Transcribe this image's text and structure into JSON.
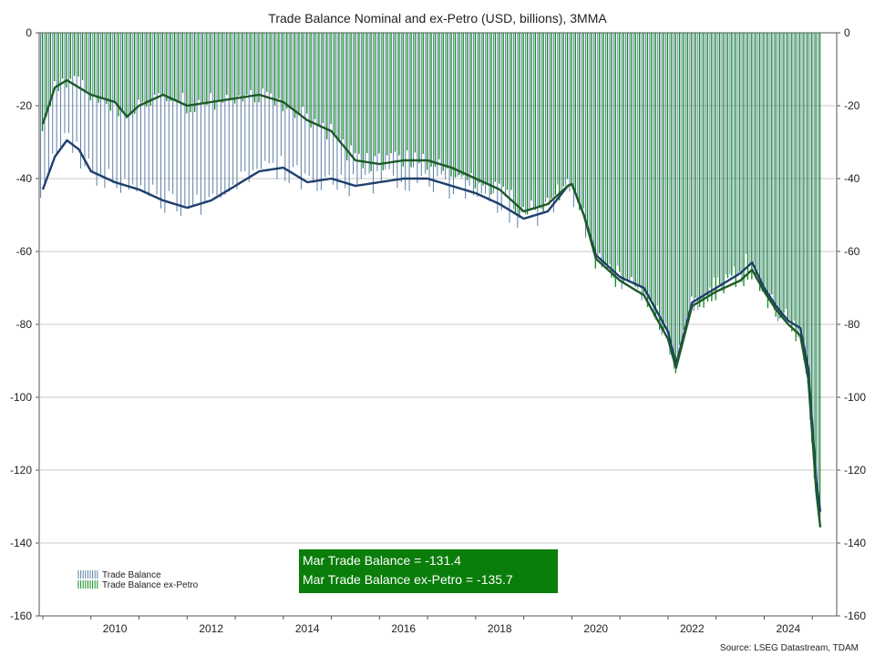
{
  "chart_data": {
    "type": "bar",
    "title": "Trade Balance Nominal and ex-Petro (USD, billions), 3MMA",
    "source": "Source: LSEG Datastream, TDAM",
    "ylim": [
      -160,
      0
    ],
    "y_ticks": [
      0,
      -20,
      -40,
      -60,
      -80,
      -100,
      -120,
      -140,
      -160
    ],
    "x_tick_labels": [
      "2010",
      "2012",
      "2014",
      "2016",
      "2018",
      "2020",
      "2022",
      "2024"
    ],
    "x_range": [
      "2009-01",
      "2025-03"
    ],
    "grid": true,
    "legend_position": "bottom-left",
    "annotation": [
      "Mar Trade Balance = -131.4",
      "Mar Trade Balance ex-Petro = -135.7"
    ],
    "series": [
      {
        "name": "Trade Balance",
        "style": "bars + 3MMA line",
        "color": "#1f3f6e",
        "bar_color": "#5b7fa6",
        "monthly_anchor_values": {
          "2009-01": -43,
          "2009-04": -34,
          "2009-07": -29.5,
          "2009-10": -32,
          "2010-01": -38,
          "2010-07": -41,
          "2011-01": -43,
          "2011-07": -46,
          "2012-01": -48,
          "2012-07": -46,
          "2013-01": -42,
          "2013-07": -38,
          "2014-01": -37,
          "2014-07": -41,
          "2015-01": -40,
          "2015-07": -42,
          "2016-01": -41,
          "2016-07": -40,
          "2017-01": -40,
          "2017-07": -42,
          "2018-01": -44,
          "2018-07": -47,
          "2019-01": -51,
          "2019-07": -49,
          "2019-12": -42,
          "2020-01": -41.5,
          "2020-04": -50,
          "2020-07": -61,
          "2021-01": -67,
          "2021-07": -70,
          "2022-01": -82,
          "2022-03": -91,
          "2022-07": -74,
          "2023-01": -70,
          "2023-07": -66,
          "2023-10": -63,
          "2024-01": -70,
          "2024-04": -75,
          "2024-07": -79,
          "2024-10": -81,
          "2024-12": -92,
          "2025-02": -123,
          "2025-03": -131.4
        }
      },
      {
        "name": "Trade Balance ex-Petro",
        "style": "bars + 3MMA line",
        "color": "#1e5a2a",
        "bar_color": "#0f8a1f",
        "monthly_anchor_values": {
          "2009-01": -25,
          "2009-04": -15,
          "2009-07": -13,
          "2009-10": -15,
          "2010-01": -17,
          "2010-07": -19,
          "2010-10": -23,
          "2011-01": -20,
          "2011-07": -17,
          "2012-01": -20,
          "2012-07": -19,
          "2013-01": -18,
          "2013-07": -17,
          "2014-01": -19,
          "2014-07": -24,
          "2015-01": -27,
          "2015-07": -35,
          "2016-01": -36,
          "2016-07": -35,
          "2017-01": -35,
          "2017-07": -37,
          "2018-01": -40,
          "2018-07": -43,
          "2019-01": -49,
          "2019-07": -47,
          "2019-12": -42,
          "2020-01": -41.5,
          "2020-04": -50,
          "2020-07": -62,
          "2021-01": -68,
          "2021-07": -72,
          "2022-01": -84,
          "2022-03": -92,
          "2022-07": -75,
          "2023-01": -71,
          "2023-07": -68,
          "2023-10": -65,
          "2024-01": -71,
          "2024-04": -76,
          "2024-07": -80,
          "2024-10": -83,
          "2024-12": -95,
          "2025-02": -126,
          "2025-03": -135.7
        }
      }
    ]
  }
}
